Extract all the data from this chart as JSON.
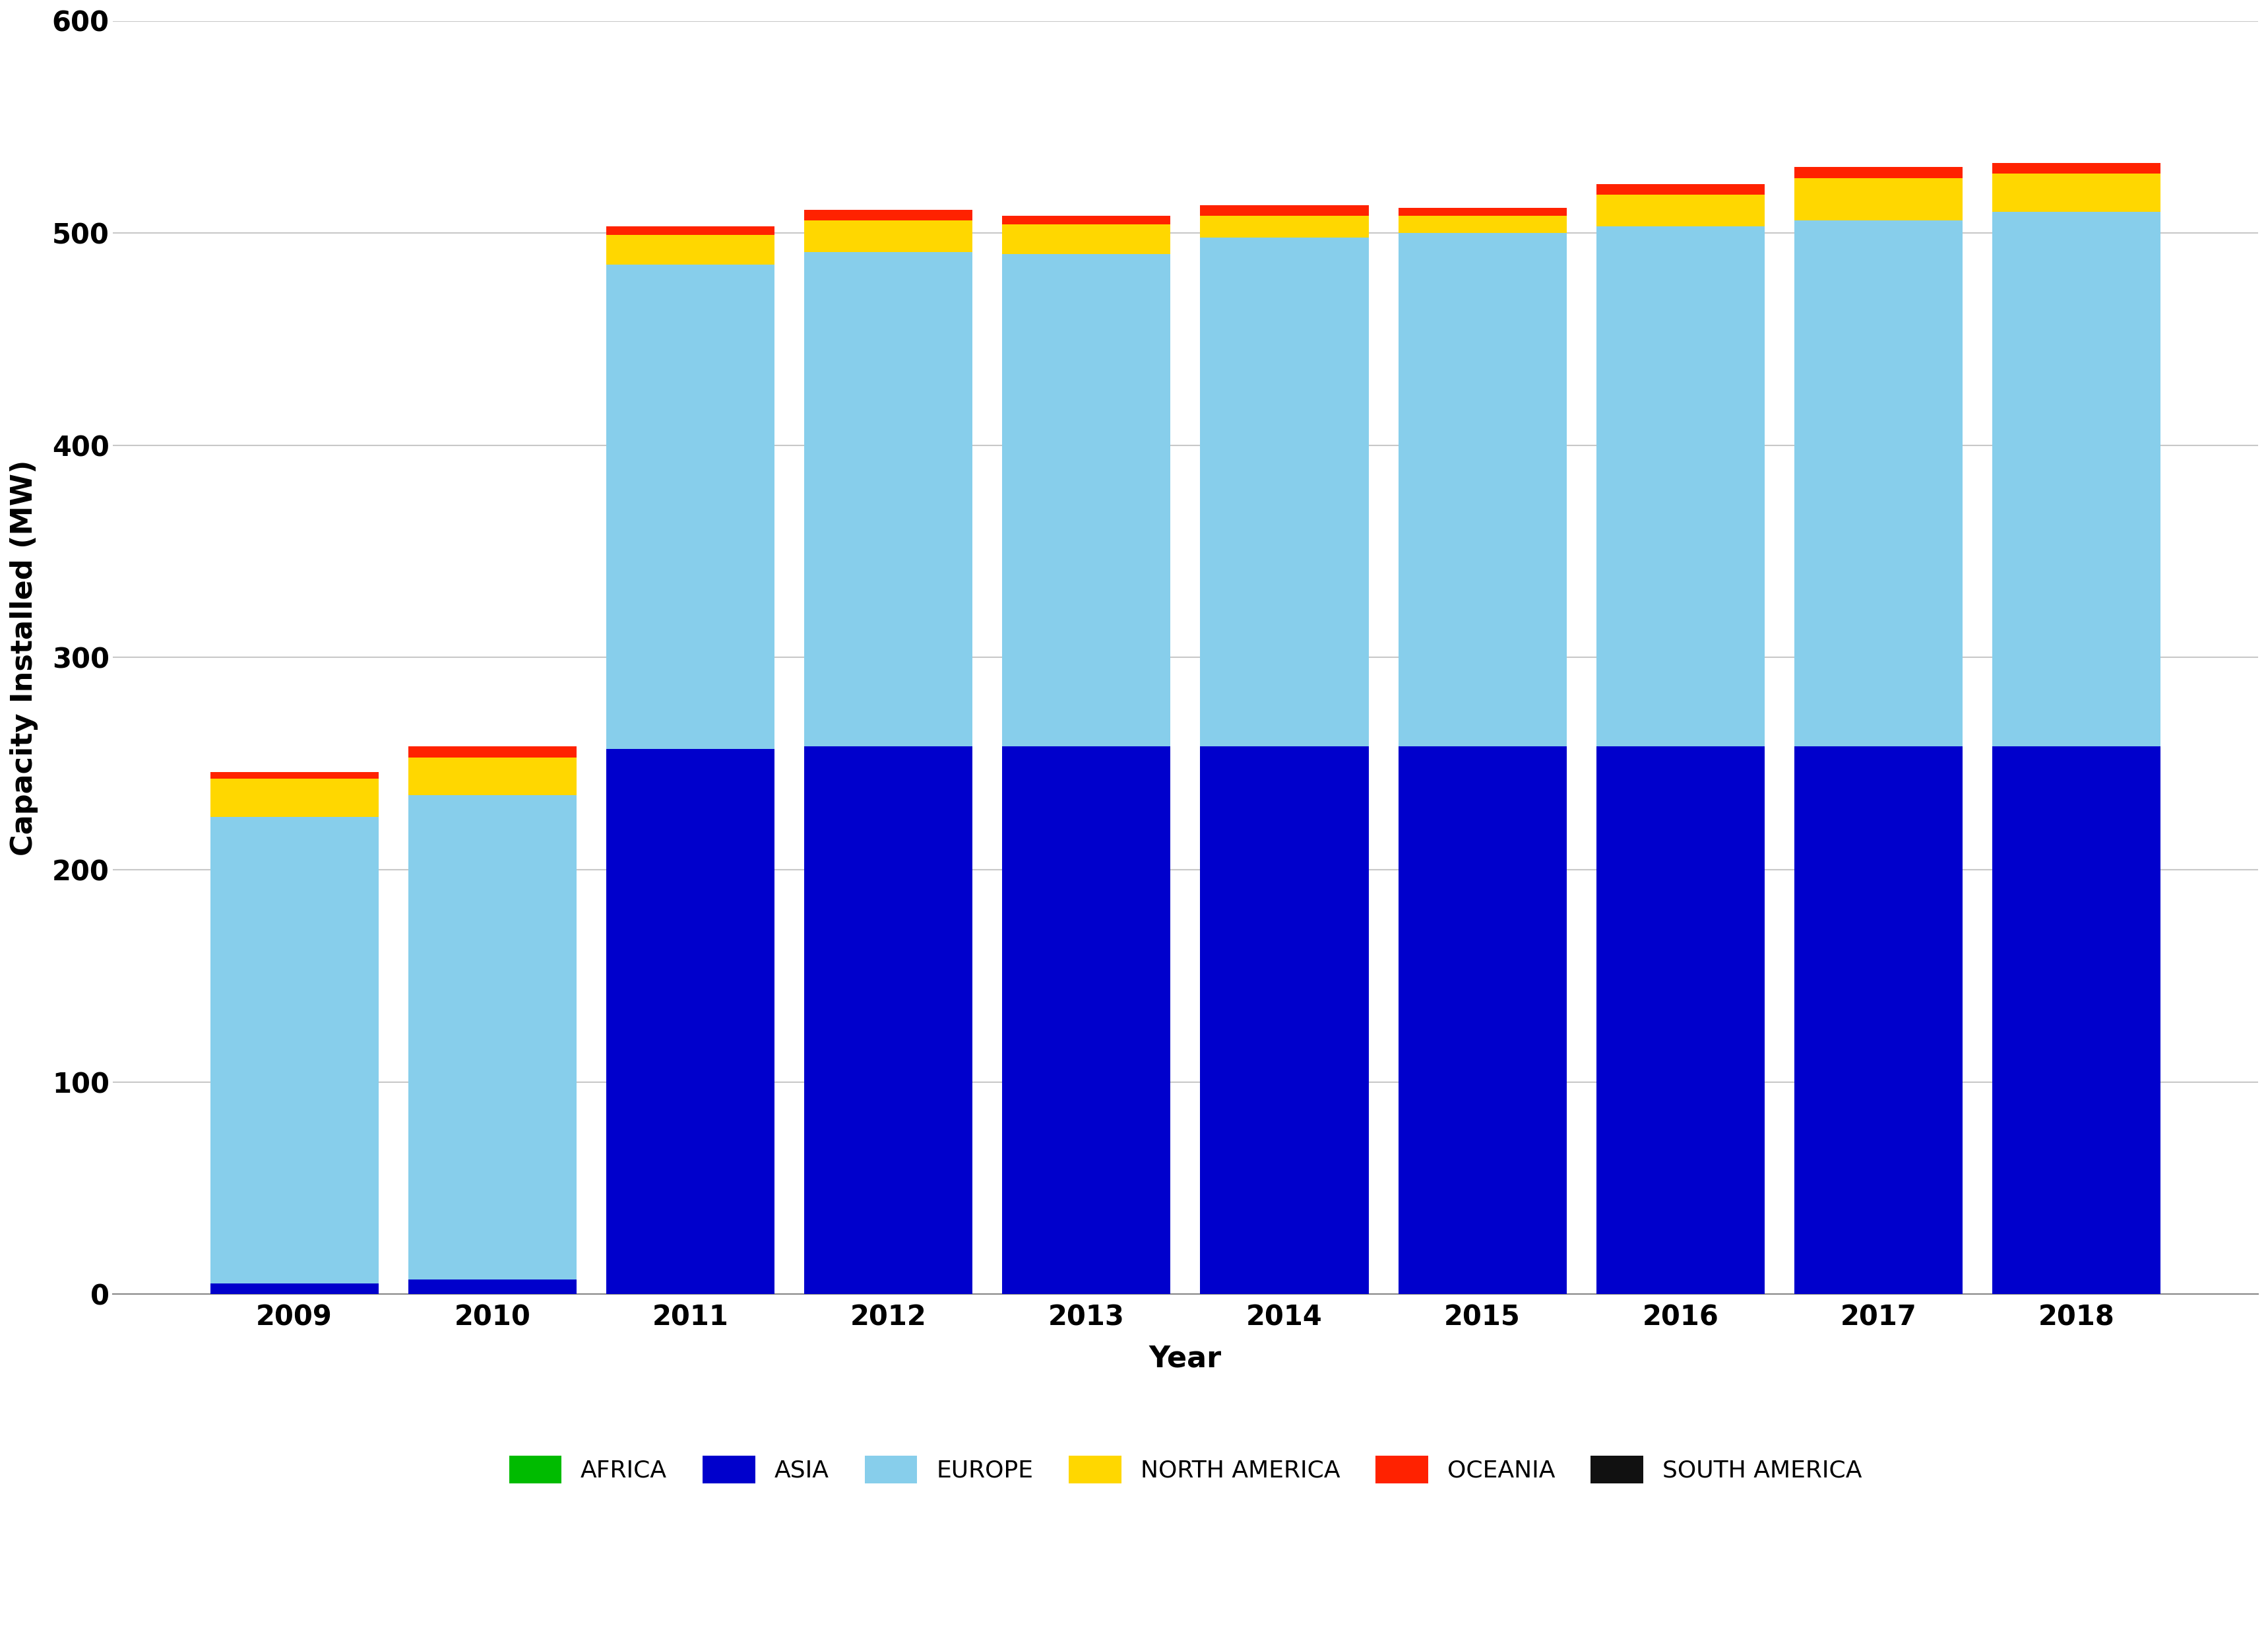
{
  "years": [
    2009,
    2010,
    2011,
    2012,
    2013,
    2014,
    2015,
    2016,
    2017,
    2018
  ],
  "africa": [
    0,
    0,
    0,
    0,
    0,
    0,
    0,
    0,
    0,
    0
  ],
  "asia": [
    5,
    7,
    257,
    258,
    258,
    258,
    258,
    258,
    258,
    258
  ],
  "europe": [
    220,
    228,
    228,
    233,
    232,
    240,
    242,
    245,
    248,
    252
  ],
  "north_america": [
    18,
    18,
    14,
    15,
    14,
    10,
    8,
    15,
    20,
    18
  ],
  "oceania": [
    3,
    5,
    4,
    5,
    4,
    5,
    4,
    5,
    5,
    5
  ],
  "south_america": [
    0,
    0,
    0,
    0,
    0,
    0,
    0,
    0,
    0,
    0
  ],
  "colors": {
    "africa": "#00BB00",
    "asia": "#0000CC",
    "europe": "#87CEEB",
    "north_america": "#FFD700",
    "oceania": "#FF2200",
    "south_america": "#111111"
  },
  "ylabel": "Capacity Installed (MW)",
  "xlabel": "Year",
  "ylim": [
    0,
    600
  ],
  "yticks": [
    0,
    100,
    200,
    300,
    400,
    500,
    600
  ],
  "legend_labels": [
    "AFRICA",
    "ASIA",
    "EUROPE",
    "NORTH AMERICA",
    "OCEANIA",
    "SOUTH AMERICA"
  ],
  "legend_colors": [
    "#00BB00",
    "#0000CC",
    "#87CEEB",
    "#FFD700",
    "#FF2200",
    "#111111"
  ],
  "background_color": "#ffffff",
  "grid_color": "#c8c8c8",
  "ylabel_fontsize": 32,
  "xlabel_fontsize": 32,
  "tick_fontsize": 30,
  "legend_fontsize": 26,
  "bar_width": 0.85
}
